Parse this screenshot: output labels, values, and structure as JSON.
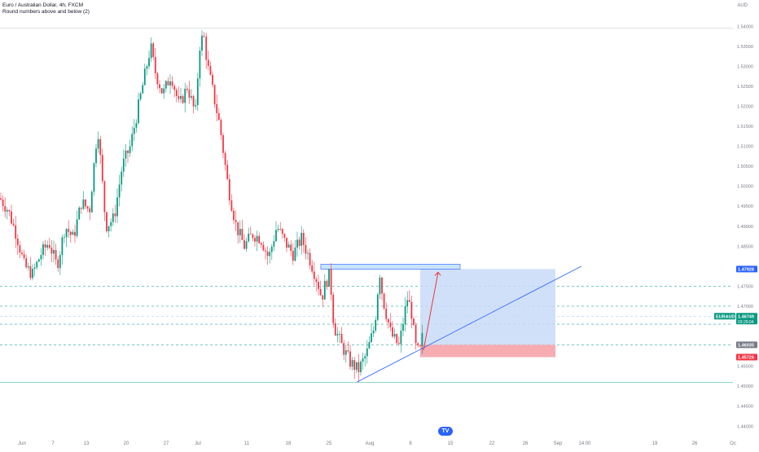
{
  "header": {
    "title": "Euro / Australian Dollar, 4h, FXCM",
    "subtitle": "Round numbers above and below (2)",
    "currency": "AUD"
  },
  "colors": {
    "up": "#089981",
    "down": "#f23645",
    "grid_dash": "#26a69a",
    "zone": "#2962ff",
    "profit_fill": "#c9daf8",
    "loss_fill": "#f5a3a9",
    "trendline": "#2962ff",
    "arrow": "#e53935",
    "badge_price": "#2962ff",
    "badge_pair": "#089981",
    "badge_entry": "#787b86",
    "badge_stop": "#f23645"
  },
  "chart_data": {
    "type": "candlestick",
    "symbol": "EURAUD",
    "timeframe": "4h",
    "ylim": [
      1.437,
      1.5425
    ],
    "y_ticks": [
      "1.54000",
      "1.53500",
      "1.53000",
      "1.52500",
      "1.52000",
      "1.51500",
      "1.51000",
      "1.50500",
      "1.50000",
      "1.49500",
      "1.49000",
      "1.48500",
      "1.47500",
      "1.47000",
      "1.45500",
      "1.45000",
      "1.44500",
      "1.44000"
    ],
    "x_ticks": [
      "Jun",
      "7",
      "13",
      "20",
      "27",
      "Jul",
      "11",
      "18",
      "25",
      "Aug",
      "8",
      "15",
      "22",
      "26",
      "Sep",
      "14:00",
      "19",
      "26",
      "Oc"
    ],
    "close_path": [
      [
        0,
        1.497
      ],
      [
        10,
        1.494
      ],
      [
        20,
        1.488
      ],
      [
        30,
        1.48
      ],
      [
        40,
        1.478
      ],
      [
        50,
        1.483
      ],
      [
        60,
        1.486
      ],
      [
        70,
        1.48
      ],
      [
        80,
        1.49
      ],
      [
        90,
        1.487
      ],
      [
        100,
        1.496
      ],
      [
        110,
        1.494
      ],
      [
        120,
        1.515
      ],
      [
        130,
        1.49
      ],
      [
        140,
        1.492
      ],
      [
        150,
        1.505
      ],
      [
        160,
        1.51
      ],
      [
        170,
        1.52
      ],
      [
        180,
        1.53
      ],
      [
        185,
        1.535
      ],
      [
        190,
        1.529
      ],
      [
        200,
        1.523
      ],
      [
        210,
        1.528
      ],
      [
        220,
        1.52
      ],
      [
        230,
        1.525
      ],
      [
        240,
        1.518
      ],
      [
        245,
        1.535
      ],
      [
        250,
        1.538
      ],
      [
        255,
        1.53
      ],
      [
        260,
        1.525
      ],
      [
        270,
        1.515
      ],
      [
        280,
        1.5
      ],
      [
        290,
        1.49
      ],
      [
        300,
        1.485
      ],
      [
        310,
        1.488
      ],
      [
        320,
        1.487
      ],
      [
        330,
        1.482
      ],
      [
        340,
        1.49
      ],
      [
        350,
        1.486
      ],
      [
        360,
        1.483
      ],
      [
        370,
        1.487
      ],
      [
        380,
        1.482
      ],
      [
        390,
        1.476
      ],
      [
        395,
        1.472
      ],
      [
        400,
        1.476
      ],
      [
        405,
        1.478
      ],
      [
        410,
        1.465
      ],
      [
        420,
        1.46
      ],
      [
        425,
        1.458
      ],
      [
        430,
        1.456
      ],
      [
        440,
        1.454
      ],
      [
        450,
        1.458
      ],
      [
        460,
        1.465
      ],
      [
        466,
        1.479
      ],
      [
        470,
        1.472
      ],
      [
        480,
        1.463
      ],
      [
        490,
        1.46
      ],
      [
        500,
        1.472
      ],
      [
        505,
        1.469
      ],
      [
        510,
        1.46
      ],
      [
        515,
        1.458
      ],
      [
        520,
        1.464
      ]
    ],
    "horizontal_lines": [
      1.475,
      1.47,
      1.4675,
      1.4655,
      1.4603,
      1.451
    ],
    "supply_zone": {
      "x_from": "25",
      "x_to": "15",
      "low": 1.47925,
      "high": 1.4805
    },
    "long_position": {
      "entry": 1.46035,
      "target": 1.47928,
      "stop": 1.45726
    },
    "trendline": {
      "from_price": 1.451,
      "to_price": 1.48
    },
    "projection_arrow": {
      "from_price": 1.459,
      "to_price": 1.4785
    },
    "price_labels": {
      "target": "1.47928",
      "pair": "EURAUD",
      "current": "1.46749",
      "countdown": "03:29:04",
      "entry": "1.46035",
      "stop": "1.45726"
    }
  }
}
